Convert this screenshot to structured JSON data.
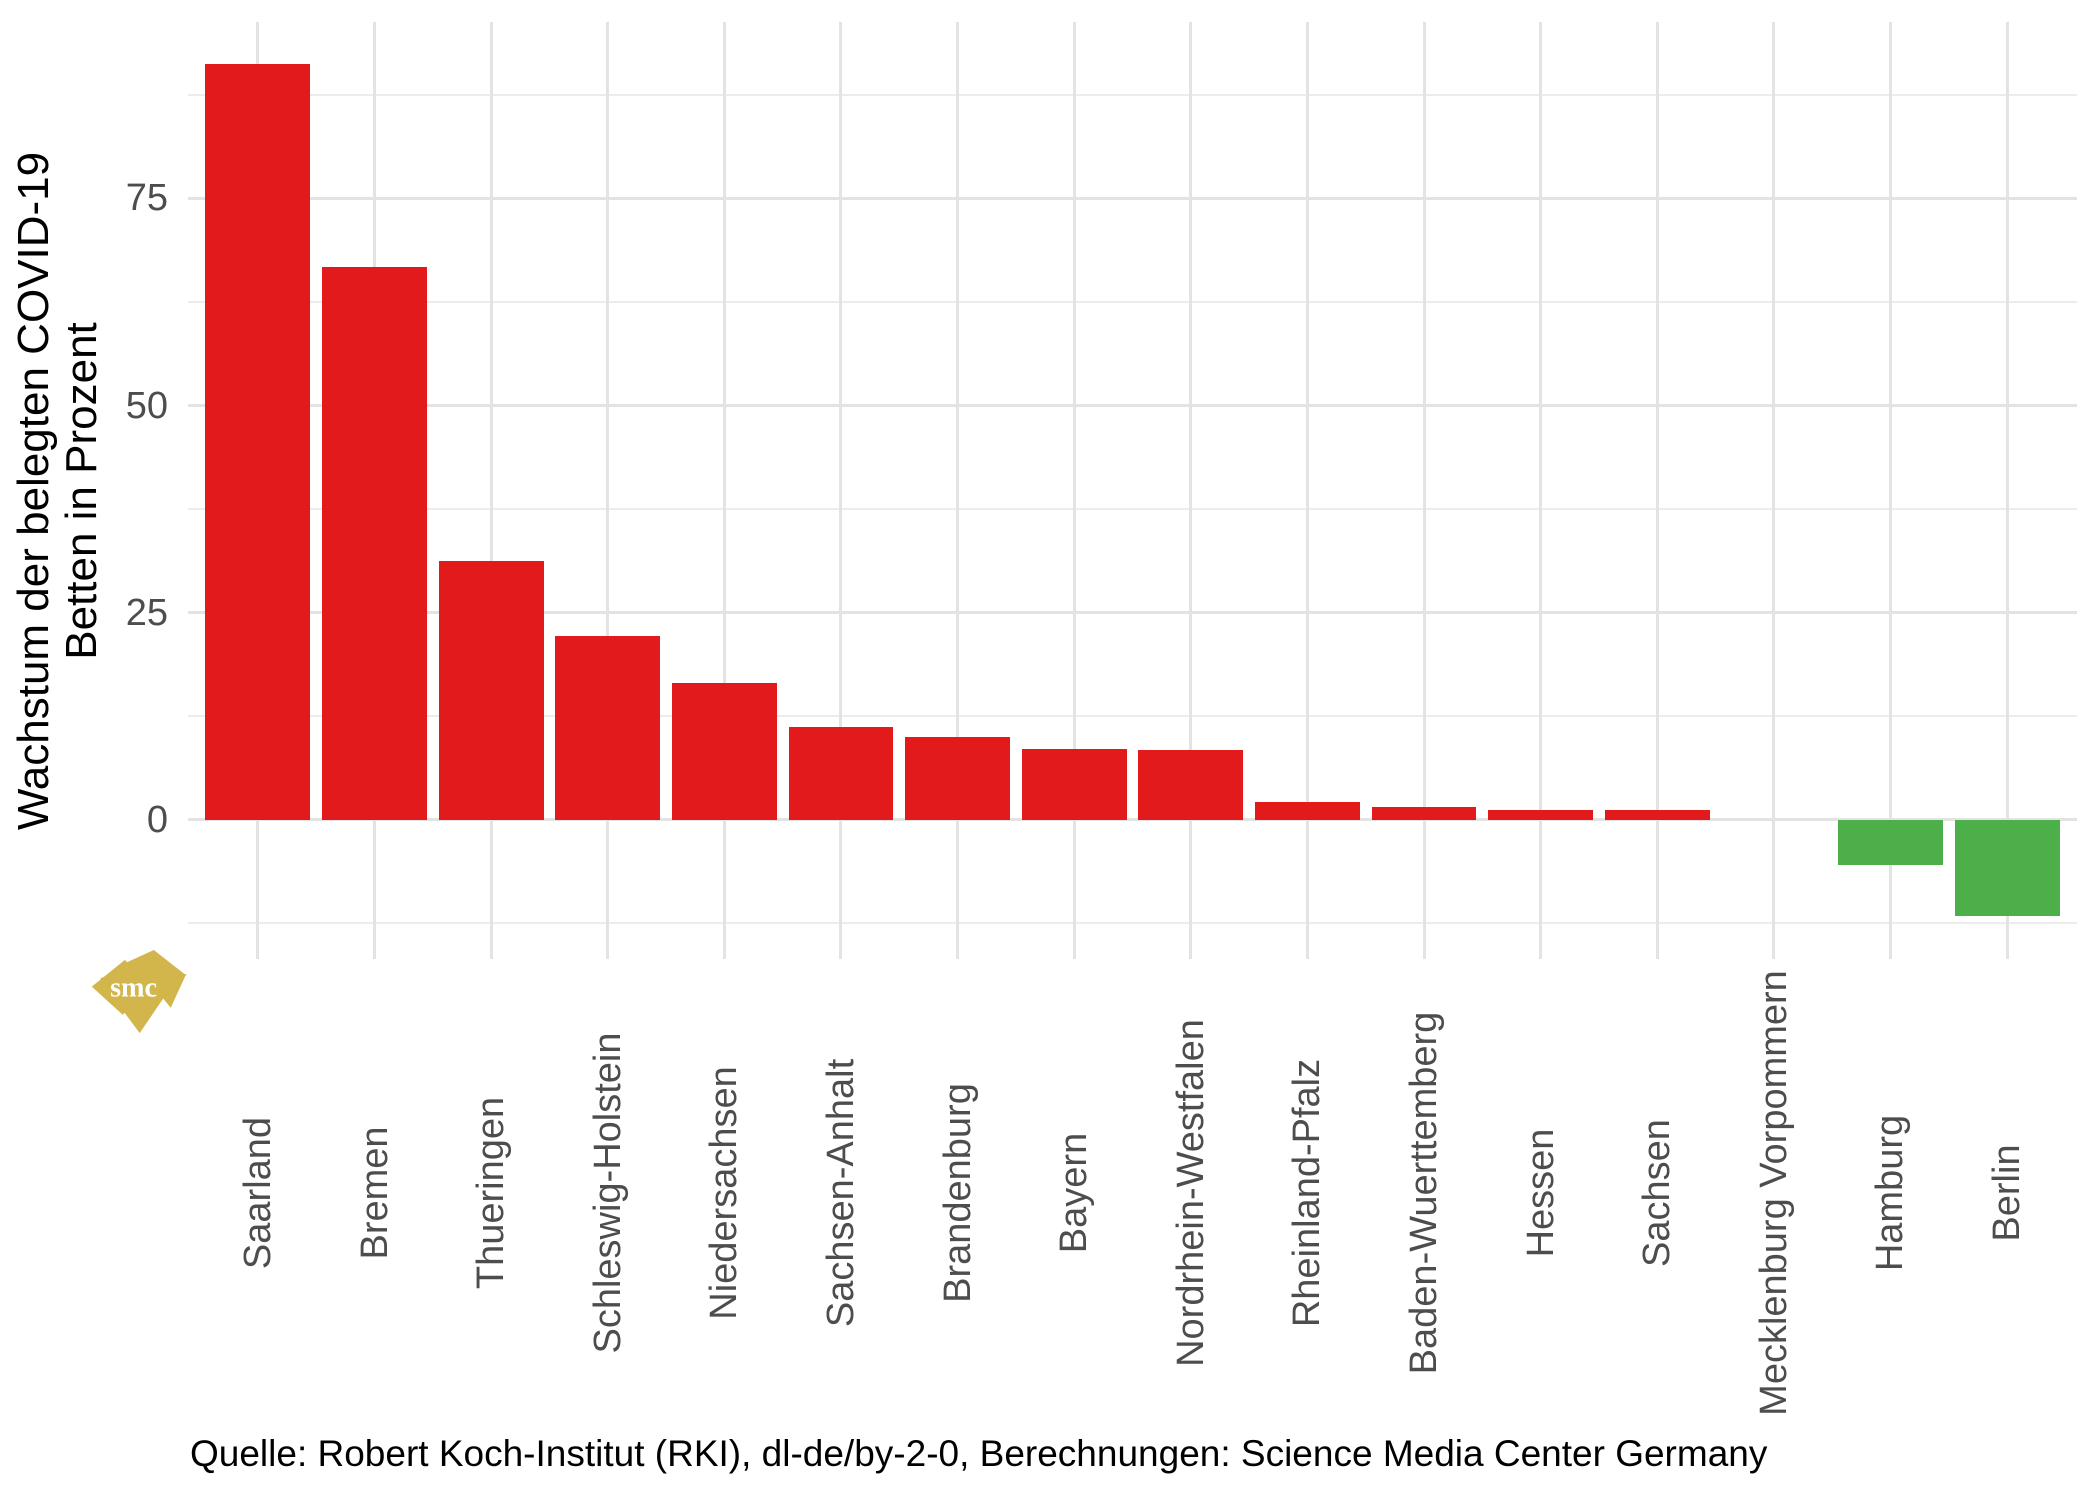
{
  "figure": {
    "y_axis_title_line1": "Wachstum der belegten COVID-19",
    "y_axis_title_line2": "Betten in Prozent",
    "caption": "Quelle: Robert Koch-Institut (RKI), dl-de/by-2-0, Berechnungen: Science Media Center Germany",
    "logo_text": "smc"
  },
  "colors": {
    "bar_positive": "#E21A1C",
    "bar_negative": "#4CAF4A",
    "grid_major": "#E3E3E3",
    "grid_minor": "#ECECEC",
    "axis_text": "#4D4D4D",
    "title_text": "#000000",
    "logo_gold": "#D2B54B",
    "background": "#FFFFFF"
  },
  "chart_data": {
    "type": "bar",
    "title": "",
    "xlabel": "",
    "ylabel": "Wachstum der belegten COVID-19 Betten in Prozent",
    "categories": [
      "Saarland",
      "Bremen",
      "Thueringen",
      "Schleswig-Holstein",
      "Niedersachsen",
      "Sachsen-Anhalt",
      "Brandenburg",
      "Bayern",
      "Nordrhein-Westfalen",
      "Rheinland-Pfalz",
      "Baden-Wuerttemberg",
      "Hessen",
      "Sachsen",
      "Mecklenburg Vorpommern",
      "Hamburg",
      "Berlin"
    ],
    "values": [
      91.2,
      66.7,
      31.3,
      22.2,
      16.5,
      11.2,
      10.0,
      8.5,
      8.4,
      2.2,
      1.5,
      1.2,
      1.2,
      0,
      -5.4,
      -11.6
    ],
    "yticks": [
      0,
      25,
      50,
      75
    ],
    "ylim": [
      -16.8,
      96.3
    ],
    "minor_tick_step": 12.5,
    "grid": "on",
    "legend": "none",
    "color_rule": "positive values red, negative values green",
    "bar_width_fraction": 0.9
  }
}
